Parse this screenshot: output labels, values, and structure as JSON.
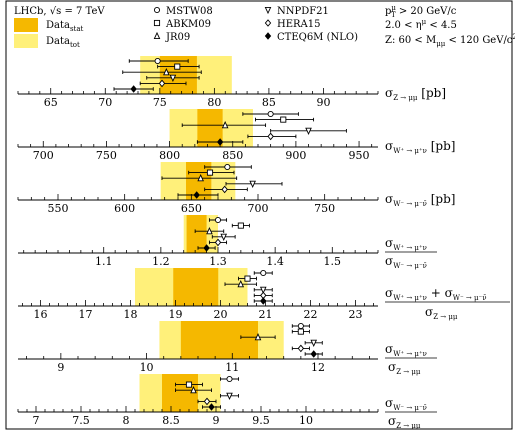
{
  "header": {
    "experiment": "LHCb, √s = 7 TeV",
    "band_stat_label": "Data",
    "band_stat_sub": "stat",
    "band_tot_label": "Data",
    "band_tot_sub": "tot",
    "models": [
      "MSTW08",
      "ABKM09",
      "JR09",
      "NNPDF21",
      "HERA15",
      "CTEQ6M (NLO)"
    ],
    "cuts": [
      "p_T^μ > 20 GeV/c",
      "2.0 < η^μ < 4.5",
      "Z: 60 < M_μμ < 120 GeV/c²"
    ]
  },
  "colors": {
    "stat": "#f5b800",
    "tot": "#fff07a",
    "frame": "#000000"
  },
  "chart_data": [
    {
      "type": "scatter",
      "observable": "σ Z→μμ [pb]",
      "xlim": [
        62,
        95
      ],
      "ticks": [
        65,
        70,
        75,
        80,
        85,
        90
      ],
      "data_central": 76.7,
      "data_stat": [
        75.0,
        78.4
      ],
      "data_tot": [
        73.2,
        81.6
      ],
      "series": [
        {
          "name": "MSTW08",
          "marker": "circle",
          "value": 74.8,
          "err": [
            72.2,
            77.6
          ]
        },
        {
          "name": "ABKM09",
          "marker": "square",
          "value": 76.6,
          "err": [
            74.8,
            78.6
          ]
        },
        {
          "name": "JR09",
          "marker": "triangle-up",
          "value": 75.6,
          "err": [
            71.6,
            78.8
          ]
        },
        {
          "name": "NNPDF21",
          "marker": "triangle-down",
          "value": 76.2,
          "err": [
            73.8,
            78.6
          ]
        },
        {
          "name": "HERA15",
          "marker": "diamond-open",
          "value": 75.2,
          "err": [
            73.2,
            77.4
          ]
        },
        {
          "name": "CTEQ6M (NLO)",
          "marker": "diamond-filled",
          "value": 72.6,
          "err": [
            70.8,
            74.4
          ]
        }
      ]
    },
    {
      "type": "scatter",
      "observable": "σ W+→μ+ν [pb]",
      "xlim": [
        680,
        965
      ],
      "ticks": [
        700,
        750,
        800,
        850,
        900,
        950
      ],
      "data_central": 832,
      "data_stat": [
        822,
        842
      ],
      "data_tot": [
        800,
        866
      ],
      "series": [
        {
          "name": "MSTW08",
          "marker": "circle",
          "value": 880,
          "err": [
            858,
            902
          ]
        },
        {
          "name": "ABKM09",
          "marker": "square",
          "value": 890,
          "err": [
            868,
            914
          ]
        },
        {
          "name": "JR09",
          "marker": "triangle-up",
          "value": 844,
          "err": [
            810,
            876
          ]
        },
        {
          "name": "NNPDF21",
          "marker": "triangle-down",
          "value": 910,
          "err": [
            880,
            940
          ]
        },
        {
          "name": "HERA15",
          "marker": "diamond-open",
          "value": 880,
          "err": [
            862,
            900
          ]
        },
        {
          "name": "CTEQ6M (NLO)",
          "marker": "diamond-filled",
          "value": 840,
          "err": [
            822,
            858
          ]
        }
      ]
    },
    {
      "type": "scatter",
      "observable": "σ W−→μ−ν̄ [pb]",
      "xlim": [
        520,
        790
      ],
      "ticks": [
        550,
        600,
        650,
        700,
        750
      ],
      "data_central": 655,
      "data_stat": [
        646,
        665
      ],
      "data_tot": [
        627,
        683
      ],
      "series": [
        {
          "name": "MSTW08",
          "marker": "circle",
          "value": 677,
          "err": [
            660,
            695
          ]
        },
        {
          "name": "ABKM09",
          "marker": "square",
          "value": 664,
          "err": [
            648,
            682
          ]
        },
        {
          "name": "JR09",
          "marker": "triangle-up",
          "value": 657,
          "err": [
            628,
            684
          ]
        },
        {
          "name": "NNPDF21",
          "marker": "triangle-down",
          "value": 696,
          "err": [
            676,
            718
          ]
        },
        {
          "name": "HERA15",
          "marker": "diamond-open",
          "value": 675,
          "err": [
            660,
            692
          ]
        },
        {
          "name": "CTEQ6M (NLO)",
          "marker": "diamond-filled",
          "value": 654,
          "err": [
            640,
            670
          ]
        }
      ]
    },
    {
      "type": "scatter",
      "observable": "σ W+→μ+ν / σ W−→μ−ν̄",
      "xlim": [
        0.95,
        1.58
      ],
      "ticks": [
        1.1,
        1.2,
        1.3,
        1.4,
        1.5
      ],
      "data_central": 1.27,
      "data_stat": [
        1.245,
        1.28
      ],
      "data_tot": [
        1.24,
        1.3
      ],
      "series": [
        {
          "name": "MSTW08",
          "marker": "circle",
          "value": 1.3,
          "err": [
            1.285,
            1.315
          ]
        },
        {
          "name": "ABKM09",
          "marker": "square",
          "value": 1.34,
          "err": [
            1.325,
            1.355
          ]
        },
        {
          "name": "JR09",
          "marker": "triangle-up",
          "value": 1.285,
          "err": [
            1.26,
            1.31
          ]
        },
        {
          "name": "NNPDF21",
          "marker": "triangle-down",
          "value": 1.31,
          "err": [
            1.29,
            1.33
          ]
        },
        {
          "name": "HERA15",
          "marker": "diamond-open",
          "value": 1.3,
          "err": [
            1.285,
            1.315
          ]
        },
        {
          "name": "CTEQ6M (NLO)",
          "marker": "diamond-filled",
          "value": 1.28,
          "err": [
            1.265,
            1.295
          ]
        }
      ]
    },
    {
      "type": "scatter",
      "observable": "(σ W+→μ+ν + σ W−→μ−ν̄) / σ Z→μμ",
      "xlim": [
        15.5,
        23.5
      ],
      "ticks": [
        16,
        17,
        18,
        19,
        20,
        21,
        22,
        23
      ],
      "data_central": 19.45,
      "data_stat": [
        18.95,
        19.95
      ],
      "data_tot": [
        18.1,
        20.6
      ],
      "series": [
        {
          "name": "MSTW08",
          "marker": "circle",
          "value": 20.95,
          "err": [
            20.75,
            21.15
          ]
        },
        {
          "name": "ABKM09",
          "marker": "square",
          "value": 20.6,
          "err": [
            20.4,
            20.8
          ]
        },
        {
          "name": "JR09",
          "marker": "triangle-up",
          "value": 20.45,
          "err": [
            20.1,
            20.8
          ]
        },
        {
          "name": "NNPDF21",
          "marker": "triangle-down",
          "value": 20.95,
          "err": [
            20.75,
            21.15
          ]
        },
        {
          "name": "HERA15",
          "marker": "diamond-open",
          "value": 20.95,
          "err": [
            20.75,
            21.15
          ]
        },
        {
          "name": "CTEQ6M (NLO)",
          "marker": "diamond-filled",
          "value": 20.95,
          "err": [
            20.75,
            21.15
          ]
        }
      ]
    },
    {
      "type": "scatter",
      "observable": "σ W+→μ+ν / σ Z→μμ",
      "xlim": [
        8.5,
        12.7
      ],
      "ticks": [
        9,
        10,
        11,
        12
      ],
      "data_central": 10.9,
      "data_stat": [
        10.4,
        11.3
      ],
      "data_tot": [
        10.15,
        11.6
      ],
      "series": [
        {
          "name": "MSTW08",
          "marker": "circle",
          "value": 11.8,
          "err": [
            11.7,
            11.9
          ]
        },
        {
          "name": "ABKM09",
          "marker": "square",
          "value": 11.8,
          "err": [
            11.7,
            11.9
          ]
        },
        {
          "name": "JR09",
          "marker": "triangle-up",
          "value": 11.3,
          "err": [
            11.1,
            11.5
          ]
        },
        {
          "name": "NNPDF21",
          "marker": "triangle-down",
          "value": 11.95,
          "err": [
            11.85,
            12.05
          ]
        },
        {
          "name": "HERA15",
          "marker": "diamond-open",
          "value": 11.8,
          "err": [
            11.7,
            11.9
          ]
        },
        {
          "name": "CTEQ6M (NLO)",
          "marker": "diamond-filled",
          "value": 11.95,
          "err": [
            11.85,
            12.05
          ]
        }
      ]
    },
    {
      "type": "scatter",
      "observable": "σ W−→μ−ν̄ / σ Z→μμ",
      "xlim": [
        6.8,
        10.8
      ],
      "ticks": [
        7,
        7.5,
        8,
        8.5,
        9,
        9.5,
        10
      ],
      "data_central": 8.6,
      "data_stat": [
        8.4,
        8.8
      ],
      "data_tot": [
        8.15,
        9.05
      ],
      "series": [
        {
          "name": "MSTW08",
          "marker": "circle",
          "value": 9.15,
          "err": [
            9.05,
            9.25
          ]
        },
        {
          "name": "ABKM09",
          "marker": "square",
          "value": 8.7,
          "err": [
            8.55,
            8.85
          ]
        },
        {
          "name": "JR09",
          "marker": "triangle-up",
          "value": 8.75,
          "err": [
            8.55,
            8.95
          ]
        },
        {
          "name": "NNPDF21",
          "marker": "triangle-down",
          "value": 9.15,
          "err": [
            9.05,
            9.25
          ]
        },
        {
          "name": "HERA15",
          "marker": "diamond-open",
          "value": 8.9,
          "err": [
            8.8,
            9.0
          ]
        },
        {
          "name": "CTEQ6M (NLO)",
          "marker": "diamond-filled",
          "value": 8.95,
          "err": [
            8.85,
            9.05
          ]
        }
      ]
    }
  ]
}
